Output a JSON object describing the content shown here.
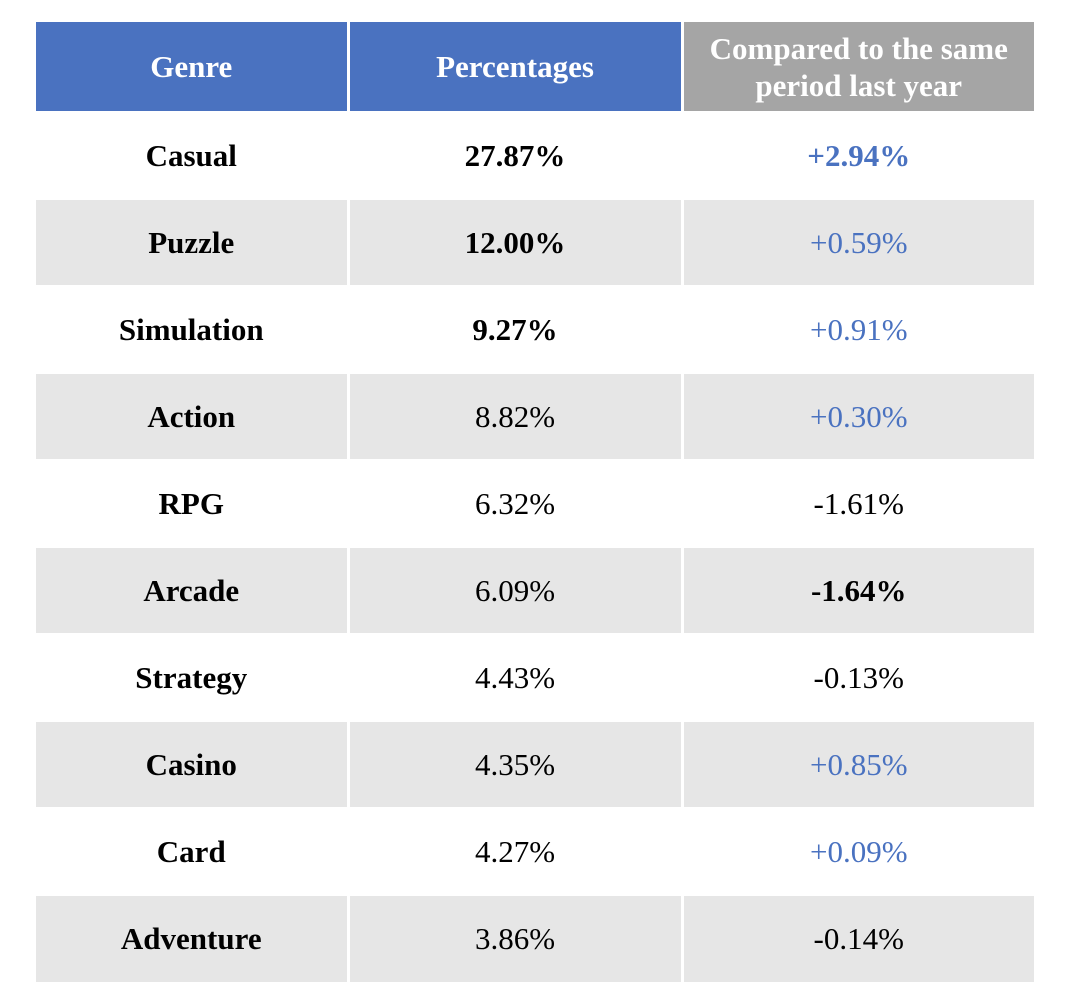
{
  "header": {
    "genre": "Genre",
    "percentages": "Percentages",
    "compared_line1": "Compared to the same",
    "compared_line2": "period last year"
  },
  "colors": {
    "header_blue": "#4a72c0",
    "header_gray": "#a5a5a5",
    "row_shade": "#e6e6e6",
    "positive_text": "#4a72c0"
  },
  "rows": [
    {
      "genre": "Casual",
      "percentage": "27.87%",
      "change": "+2.94%"
    },
    {
      "genre": "Puzzle",
      "percentage": "12.00%",
      "change": "+0.59%"
    },
    {
      "genre": "Simulation",
      "percentage": "9.27%",
      "change": "+0.91%"
    },
    {
      "genre": "Action",
      "percentage": "8.82%",
      "change": "+0.30%"
    },
    {
      "genre": "RPG",
      "percentage": "6.32%",
      "change": "-1.61%"
    },
    {
      "genre": "Arcade",
      "percentage": "6.09%",
      "change": "-1.64%"
    },
    {
      "genre": "Strategy",
      "percentage": "4.43%",
      "change": "-0.13%"
    },
    {
      "genre": "Casino",
      "percentage": "4.35%",
      "change": "+0.85%"
    },
    {
      "genre": "Card",
      "percentage": "4.27%",
      "change": "+0.09%"
    },
    {
      "genre": "Adventure",
      "percentage": "3.86%",
      "change": "-0.14%"
    }
  ]
}
